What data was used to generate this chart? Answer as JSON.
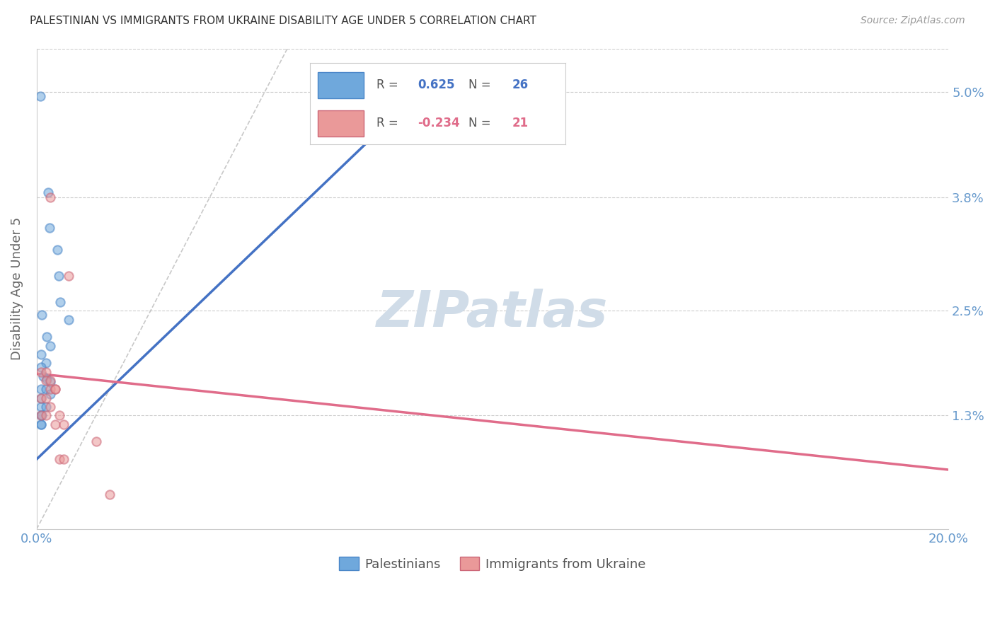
{
  "title": "PALESTINIAN VS IMMIGRANTS FROM UKRAINE DISABILITY AGE UNDER 5 CORRELATION CHART",
  "source": "Source: ZipAtlas.com",
  "ylabel": "Disability Age Under 5",
  "x_min": 0.0,
  "x_max": 0.2,
  "y_min": 0.0,
  "y_max": 0.055,
  "y_ticks": [
    0.013,
    0.025,
    0.038,
    0.05
  ],
  "y_tick_labels": [
    "1.3%",
    "2.5%",
    "3.8%",
    "5.0%"
  ],
  "x_ticks": [
    0.0,
    0.2
  ],
  "x_tick_labels": [
    "0.0%",
    "20.0%"
  ],
  "blue_color": "#6fa8dc",
  "blue_edge": "#4a86c8",
  "pink_color": "#ea9999",
  "pink_edge": "#cc6677",
  "blue_line_color": "#4472c4",
  "pink_line_color": "#e06c8a",
  "blue_dots": [
    [
      0.0008,
      0.0495
    ],
    [
      0.0025,
      0.0385
    ],
    [
      0.0028,
      0.0345
    ],
    [
      0.0045,
      0.032
    ],
    [
      0.0048,
      0.029
    ],
    [
      0.0052,
      0.026
    ],
    [
      0.0012,
      0.0245
    ],
    [
      0.0022,
      0.022
    ],
    [
      0.003,
      0.021
    ],
    [
      0.001,
      0.02
    ],
    [
      0.002,
      0.019
    ],
    [
      0.001,
      0.0185
    ],
    [
      0.0015,
      0.0175
    ],
    [
      0.0022,
      0.0172
    ],
    [
      0.003,
      0.0168
    ],
    [
      0.001,
      0.016
    ],
    [
      0.002,
      0.016
    ],
    [
      0.003,
      0.0155
    ],
    [
      0.001,
      0.015
    ],
    [
      0.001,
      0.014
    ],
    [
      0.002,
      0.014
    ],
    [
      0.001,
      0.013
    ],
    [
      0.0012,
      0.013
    ],
    [
      0.001,
      0.012
    ],
    [
      0.001,
      0.012
    ],
    [
      0.007,
      0.024
    ]
  ],
  "pink_dots": [
    [
      0.003,
      0.038
    ],
    [
      0.007,
      0.029
    ],
    [
      0.001,
      0.018
    ],
    [
      0.002,
      0.018
    ],
    [
      0.002,
      0.017
    ],
    [
      0.003,
      0.017
    ],
    [
      0.003,
      0.016
    ],
    [
      0.004,
      0.016
    ],
    [
      0.004,
      0.016
    ],
    [
      0.001,
      0.015
    ],
    [
      0.002,
      0.015
    ],
    [
      0.003,
      0.014
    ],
    [
      0.001,
      0.013
    ],
    [
      0.002,
      0.013
    ],
    [
      0.005,
      0.013
    ],
    [
      0.004,
      0.012
    ],
    [
      0.006,
      0.012
    ],
    [
      0.005,
      0.008
    ],
    [
      0.006,
      0.008
    ],
    [
      0.013,
      0.01
    ],
    [
      0.016,
      0.004
    ]
  ],
  "blue_line_x": [
    0.0,
    0.08
  ],
  "blue_line_y": [
    0.008,
    0.048
  ],
  "pink_line_x": [
    0.0,
    0.2
  ],
  "pink_line_y": [
    0.0178,
    0.0068
  ],
  "diag_line_x": [
    0.0,
    0.055
  ],
  "diag_line_y": [
    0.0,
    0.055
  ],
  "bg_color": "#ffffff",
  "grid_color": "#cccccc",
  "dot_size": 80,
  "dot_alpha": 0.55,
  "dot_linewidth": 1.5,
  "watermark_text": "ZIPatlas",
  "watermark_color": "#d0dce8",
  "r_blue": "0.625",
  "n_blue": "26",
  "r_pink": "-0.234",
  "n_pink": "21"
}
